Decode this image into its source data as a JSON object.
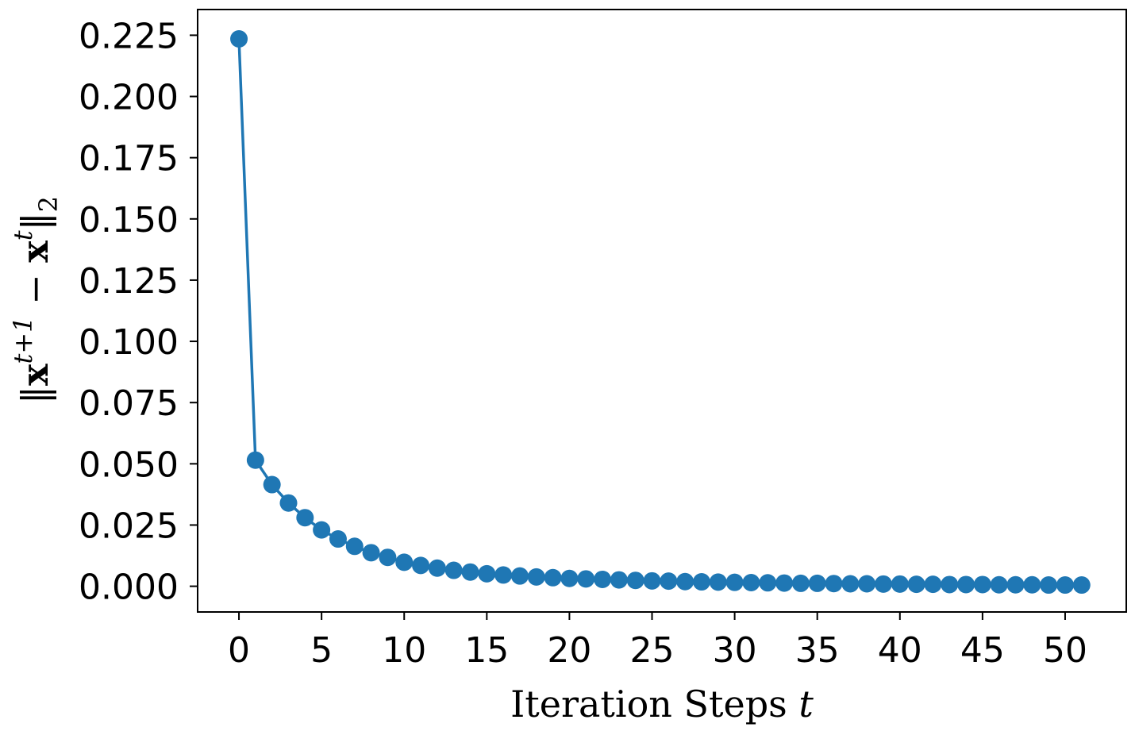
{
  "chart_data": {
    "type": "line",
    "title": "",
    "xlabel": "Iteration Steps t",
    "xlabel_parts": {
      "text": "Iteration Steps ",
      "var": "t"
    },
    "ylabel": "‖x^{t+1} − x^t‖₂",
    "ylabel_parts": {
      "open": "‖",
      "x1": "x",
      "sup1": "t+1",
      "minus": " − ",
      "x2": "x",
      "sup2": "t",
      "close": "‖",
      "sub": "2"
    },
    "xlim": [
      -2.5,
      53.7
    ],
    "ylim": [
      -0.0105,
      0.2355
    ],
    "x_ticks": [
      0,
      5,
      10,
      15,
      20,
      25,
      30,
      35,
      40,
      45,
      50
    ],
    "x_tick_labels": [
      "0",
      "5",
      "10",
      "15",
      "20",
      "25",
      "30",
      "35",
      "40",
      "45",
      "50"
    ],
    "y_ticks": [
      0.0,
      0.025,
      0.05,
      0.075,
      0.1,
      0.125,
      0.15,
      0.175,
      0.2,
      0.225
    ],
    "y_tick_labels": [
      "0.000",
      "0.025",
      "0.050",
      "0.075",
      "0.100",
      "0.125",
      "0.150",
      "0.175",
      "0.200",
      "0.225"
    ],
    "grid": false,
    "series": [
      {
        "color": "#1f77b4",
        "marker": "circle",
        "x": [
          0,
          1,
          2,
          3,
          4,
          5,
          6,
          7,
          8,
          9,
          10,
          11,
          12,
          13,
          14,
          15,
          16,
          17,
          18,
          19,
          20,
          21,
          22,
          23,
          24,
          25,
          26,
          27,
          28,
          29,
          30,
          31,
          32,
          33,
          34,
          35,
          36,
          37,
          38,
          39,
          40,
          41,
          42,
          43,
          44,
          45,
          46,
          47,
          48,
          49,
          50,
          51
        ],
        "values": [
          0.2235,
          0.0515,
          0.0415,
          0.034,
          0.028,
          0.023,
          0.0193,
          0.0163,
          0.0137,
          0.0118,
          0.0098,
          0.0085,
          0.0074,
          0.0065,
          0.0058,
          0.0051,
          0.0046,
          0.0042,
          0.0038,
          0.0035,
          0.0032,
          0.003,
          0.0028,
          0.0026,
          0.0024,
          0.0022,
          0.0021,
          0.0019,
          0.0018,
          0.0017,
          0.0016,
          0.0015,
          0.0014,
          0.0013,
          0.0012,
          0.0012,
          0.0011,
          0.001,
          0.001,
          0.0009,
          0.0009,
          0.0008,
          0.0008,
          0.0007,
          0.0007,
          0.0007,
          0.0006,
          0.0006,
          0.0006,
          0.0005,
          0.0005,
          0.0005
        ]
      }
    ]
  }
}
